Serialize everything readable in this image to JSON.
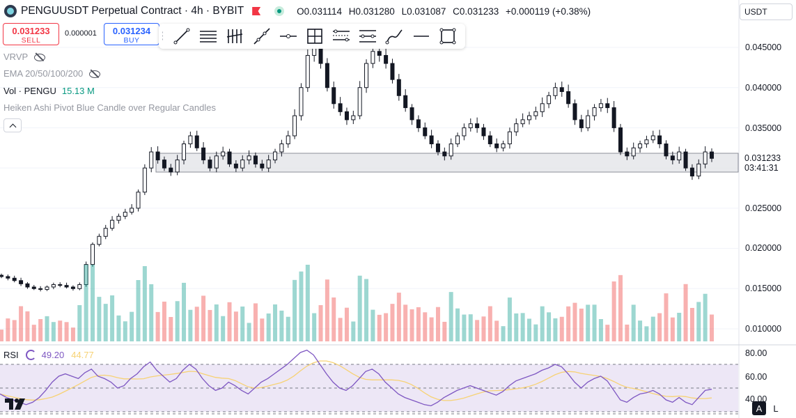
{
  "header": {
    "title": "PENGUUSDT Perpetual Contract · 4h · BYBIT",
    "ohlc": {
      "open": "O0.031114",
      "high": "H0.031280",
      "low": "L0.031087",
      "close": "C0.031233",
      "change": "+0.000119 (+0.38%)"
    },
    "currency": "USDT"
  },
  "trade": {
    "sell_price": "0.031233",
    "sell_label": "SELL",
    "spread": "0.000001",
    "buy_price": "0.031234",
    "buy_label": "BUY"
  },
  "toolbar": {
    "tools": [
      "trend-line",
      "horizontal-lines",
      "pitchfork",
      "ray",
      "horizontal-ray",
      "price-range",
      "parallel-channel",
      "regression-trend",
      "brush",
      "horizontal-line",
      "rectangle"
    ]
  },
  "indicators": {
    "vrvp": "VRVP",
    "ema": "EMA 20/50/100/200",
    "vol_label": "Vol · PENGU",
    "vol_value": "15.13 M",
    "heiken": "Heiken Ashi Pivot Blue Candle over Regular Candles"
  },
  "price_axis": {
    "ticks": [
      "0.045000",
      "0.040000",
      "0.035000",
      "0.025000",
      "0.020000",
      "0.015000",
      "0.010000"
    ],
    "last_price": "0.031233",
    "countdown": "03:41:31"
  },
  "rsi": {
    "label": "RSI",
    "value": "49.20",
    "ma_value": "44.77",
    "ticks": [
      "80.00",
      "60.00",
      "40.00"
    ]
  },
  "scale_buttons": {
    "auto": "A",
    "log": "L"
  },
  "colors": {
    "up": "#26a69a",
    "down": "#ef5350",
    "candle": "#131722",
    "rsi_line": "#7e57c2",
    "rsi_ma": "#f7d274",
    "rsi_band": "#ede7f6",
    "zone_fill": "#e6e7ea"
  },
  "chart_data": {
    "type": "candlestick",
    "interval": "4h",
    "price_close": [
      0.0165,
      0.0163,
      0.016,
      0.0156,
      0.0152,
      0.015,
      0.0149,
      0.0152,
      0.0155,
      0.0154,
      0.0152,
      0.015,
      0.0155,
      0.018,
      0.0205,
      0.0215,
      0.0225,
      0.0235,
      0.024,
      0.0245,
      0.025,
      0.027,
      0.03,
      0.032,
      0.031,
      0.03,
      0.0295,
      0.031,
      0.033,
      0.034,
      0.0325,
      0.031,
      0.03,
      0.0315,
      0.032,
      0.0305,
      0.03,
      0.031,
      0.0315,
      0.0305,
      0.03,
      0.031,
      0.032,
      0.033,
      0.034,
      0.0365,
      0.04,
      0.044,
      0.045,
      0.043,
      0.04,
      0.038,
      0.037,
      0.036,
      0.0365,
      0.04,
      0.043,
      0.0445,
      0.044,
      0.043,
      0.041,
      0.039,
      0.0375,
      0.036,
      0.035,
      0.034,
      0.033,
      0.032,
      0.0315,
      0.033,
      0.034,
      0.035,
      0.0355,
      0.035,
      0.034,
      0.033,
      0.0325,
      0.033,
      0.0345,
      0.0355,
      0.036,
      0.0365,
      0.037,
      0.038,
      0.039,
      0.04,
      0.0395,
      0.038,
      0.036,
      0.035,
      0.0365,
      0.0375,
      0.038,
      0.0375,
      0.035,
      0.032,
      0.0315,
      0.0325,
      0.033,
      0.0335,
      0.034,
      0.033,
      0.0315,
      0.031,
      0.032,
      0.03,
      0.029,
      0.0305,
      0.032,
      0.0312
    ],
    "rsi": [
      45,
      42,
      40,
      38,
      36,
      38,
      42,
      48,
      55,
      60,
      62,
      60,
      58,
      63,
      66,
      60,
      58,
      55,
      50,
      52,
      58,
      62,
      68,
      72,
      65,
      60,
      55,
      58,
      65,
      70,
      66,
      58,
      52,
      48,
      50,
      55,
      52,
      48,
      45,
      50,
      55,
      58,
      62,
      66,
      70,
      75,
      80,
      82,
      78,
      70,
      62,
      55,
      50,
      48,
      52,
      58,
      64,
      66,
      62,
      55,
      50,
      45,
      42,
      40,
      38,
      36,
      35,
      38,
      42,
      45,
      48,
      50,
      52,
      50,
      48,
      46,
      44,
      47,
      52,
      56,
      58,
      60,
      62,
      65,
      67,
      70,
      68,
      62,
      55,
      50,
      55,
      58,
      60,
      56,
      48,
      40,
      38,
      42,
      45,
      46,
      48,
      45,
      40,
      38,
      42,
      38,
      36,
      42,
      48,
      49
    ]
  }
}
